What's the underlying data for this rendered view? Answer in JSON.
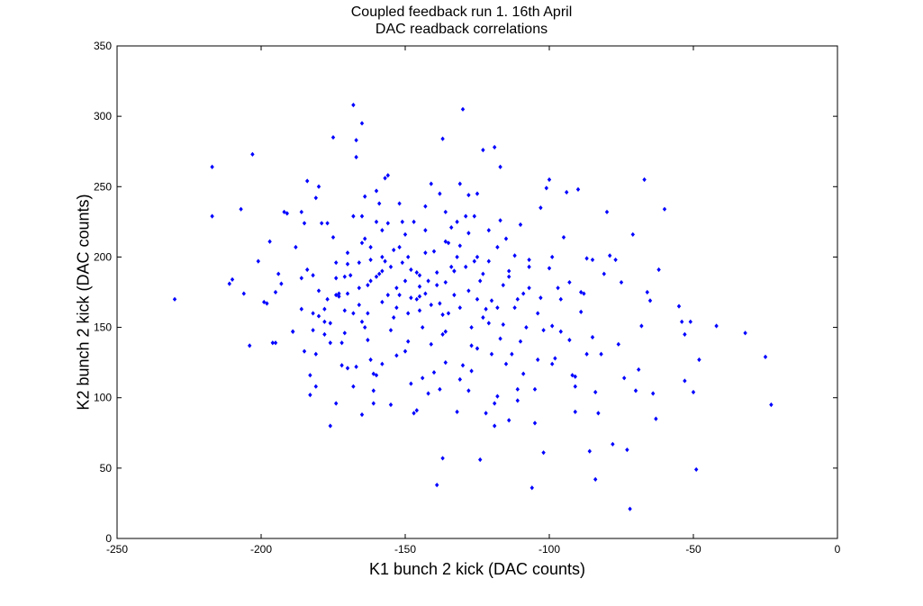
{
  "chart_data": {
    "type": "scatter",
    "title": "Coupled feedback run 1. 16th April",
    "subtitle": "DAC readback correlations",
    "xlabel": "K1 bunch 2 kick (DAC counts)",
    "ylabel": "K2 bunch 2 kick (DAC counts)",
    "xlim": [
      -250,
      0
    ],
    "ylim": [
      0,
      350
    ],
    "xticks": [
      -250,
      -200,
      -150,
      -100,
      -50,
      0
    ],
    "yticks": [
      0,
      50,
      100,
      150,
      200,
      250,
      300,
      350
    ],
    "xtick_labels": [
      "-250",
      "-200",
      "-150",
      "-100",
      "-50",
      "0"
    ],
    "ytick_labels": [
      "0",
      "50",
      "100",
      "150",
      "200",
      "250",
      "300",
      "350"
    ],
    "grid": false,
    "marker_color": "#0000ff",
    "series": [
      {
        "points": [
          [
            -230,
            170
          ],
          [
            -217,
            264
          ],
          [
            -217,
            229
          ],
          [
            -211,
            181
          ],
          [
            -210,
            184
          ],
          [
            -207,
            234
          ],
          [
            -206,
            174
          ],
          [
            -204,
            137
          ],
          [
            -203,
            273
          ],
          [
            -201,
            197
          ],
          [
            -199,
            168
          ],
          [
            -198,
            167
          ],
          [
            -197,
            211
          ],
          [
            -196,
            139
          ],
          [
            -195,
            175
          ],
          [
            -194,
            188
          ],
          [
            -193,
            181
          ],
          [
            -192,
            232
          ],
          [
            -191,
            231
          ],
          [
            -189,
            147
          ],
          [
            -188,
            207
          ],
          [
            -186,
            185
          ],
          [
            -186,
            163
          ],
          [
            -186,
            232
          ],
          [
            -185,
            224
          ],
          [
            -185,
            133
          ],
          [
            -184,
            254
          ],
          [
            -184,
            191
          ],
          [
            -183,
            116
          ],
          [
            -183,
            102
          ],
          [
            -182,
            187
          ],
          [
            -182,
            160
          ],
          [
            -181,
            108
          ],
          [
            -181,
            131
          ],
          [
            -181,
            242
          ],
          [
            -180,
            250
          ],
          [
            -180,
            158
          ],
          [
            -179,
            224
          ],
          [
            -178,
            154
          ],
          [
            -178,
            145
          ],
          [
            -177,
            224
          ],
          [
            -177,
            170
          ],
          [
            -176,
            139
          ],
          [
            -176,
            153
          ],
          [
            -175,
            285
          ],
          [
            -175,
            214
          ],
          [
            -174,
            196
          ],
          [
            -174,
            173
          ],
          [
            -173,
            174
          ],
          [
            -173,
            172
          ],
          [
            -172,
            139
          ],
          [
            -171,
            162
          ],
          [
            -171,
            146
          ],
          [
            -170,
            203
          ],
          [
            -170,
            195
          ],
          [
            -169,
            187
          ],
          [
            -168,
            308
          ],
          [
            -168,
            229
          ],
          [
            -167,
            283
          ],
          [
            -167,
            271
          ],
          [
            -166,
            196
          ],
          [
            -166,
            178
          ],
          [
            -166,
            166
          ],
          [
            -165,
            295
          ],
          [
            -165,
            229
          ],
          [
            -165,
            154
          ],
          [
            -164,
            243
          ],
          [
            -164,
            213
          ],
          [
            -163,
            180
          ],
          [
            -163,
            141
          ],
          [
            -162,
            207
          ],
          [
            -162,
            198
          ],
          [
            -162,
            183
          ],
          [
            -161,
            96
          ],
          [
            -161,
            105
          ],
          [
            -161,
            117
          ],
          [
            -160,
            225
          ],
          [
            -160,
            247
          ],
          [
            -159,
            188
          ],
          [
            -158,
            219
          ],
          [
            -158,
            200
          ],
          [
            -158,
            168
          ],
          [
            -157,
            197
          ],
          [
            -157,
            256
          ],
          [
            -156,
            258
          ],
          [
            -156,
            224
          ],
          [
            -156,
            173
          ],
          [
            -155,
            148
          ],
          [
            -155,
            193
          ],
          [
            -154,
            205
          ],
          [
            -153,
            164
          ],
          [
            -153,
            130
          ],
          [
            -152,
            238
          ],
          [
            -151,
            225
          ],
          [
            -151,
            196
          ],
          [
            -150,
            183
          ],
          [
            -149,
            160
          ],
          [
            -149,
            140
          ],
          [
            -149,
            200
          ],
          [
            -148,
            191
          ],
          [
            -147,
            225
          ],
          [
            -146,
            189
          ],
          [
            -146,
            170
          ],
          [
            -145,
            162
          ],
          [
            -145,
            187
          ],
          [
            -144,
            150
          ],
          [
            -143,
            174
          ],
          [
            -143,
            219
          ],
          [
            -142,
            183
          ],
          [
            -141,
            166
          ],
          [
            -141,
            138
          ],
          [
            -140,
            118
          ],
          [
            -140,
            204
          ],
          [
            -139,
            38
          ],
          [
            -139,
            189
          ],
          [
            -138,
            245
          ],
          [
            -138,
            167
          ],
          [
            -137,
            284
          ],
          [
            -137,
            57
          ],
          [
            -136,
            232
          ],
          [
            -136,
            182
          ],
          [
            -136,
            147
          ],
          [
            -135,
            210
          ],
          [
            -135,
            160
          ],
          [
            -134,
            193
          ],
          [
            -133,
            190
          ],
          [
            -133,
            173
          ],
          [
            -132,
            225
          ],
          [
            -131,
            208
          ],
          [
            -131,
            164
          ],
          [
            -130,
            305
          ],
          [
            -129,
            229
          ],
          [
            -129,
            193
          ],
          [
            -128,
            176
          ],
          [
            -128,
            217
          ],
          [
            -127,
            137
          ],
          [
            -127,
            150
          ],
          [
            -126,
            197
          ],
          [
            -125,
            170
          ],
          [
            -125,
            245
          ],
          [
            -124,
            56
          ],
          [
            -124,
            183
          ],
          [
            -123,
            188
          ],
          [
            -123,
            276
          ],
          [
            -122,
            163
          ],
          [
            -121,
            219
          ],
          [
            -121,
            197
          ],
          [
            -120,
            169
          ],
          [
            -119,
            278
          ],
          [
            -119,
            96
          ],
          [
            -119,
            80
          ],
          [
            -118,
            207
          ],
          [
            -118,
            164
          ],
          [
            -117,
            264
          ],
          [
            -117,
            226
          ],
          [
            -116,
            180
          ],
          [
            -116,
            152
          ],
          [
            -115,
            213
          ],
          [
            -114,
            190
          ],
          [
            -114,
            84
          ],
          [
            -113,
            131
          ],
          [
            -112,
            201
          ],
          [
            -111,
            170
          ],
          [
            -111,
            106
          ],
          [
            -110,
            223
          ],
          [
            -109,
            174
          ],
          [
            -108,
            150
          ],
          [
            -107,
            198
          ],
          [
            -107,
            193
          ],
          [
            -106,
            36
          ],
          [
            -105,
            82
          ],
          [
            -105,
            106
          ],
          [
            -104,
            160
          ],
          [
            -103,
            235
          ],
          [
            -103,
            171
          ],
          [
            -102,
            61
          ],
          [
            -101,
            249
          ],
          [
            -100,
            255
          ],
          [
            -100,
            192
          ],
          [
            -99,
            200
          ],
          [
            -99,
            151
          ],
          [
            -98,
            128
          ],
          [
            -97,
            178
          ],
          [
            -96,
            170
          ],
          [
            -95,
            214
          ],
          [
            -94,
            246
          ],
          [
            -93,
            182
          ],
          [
            -93,
            141
          ],
          [
            -92,
            116
          ],
          [
            -91,
            108
          ],
          [
            -91,
            115
          ],
          [
            -91,
            90
          ],
          [
            -90,
            248
          ],
          [
            -89,
            175
          ],
          [
            -88,
            174
          ],
          [
            -87,
            131
          ],
          [
            -87,
            199
          ],
          [
            -86,
            62
          ],
          [
            -85,
            198
          ],
          [
            -84,
            104
          ],
          [
            -84,
            42
          ],
          [
            -83,
            89
          ],
          [
            -82,
            131
          ],
          [
            -81,
            188
          ],
          [
            -80,
            232
          ],
          [
            -79,
            201
          ],
          [
            -78,
            67
          ],
          [
            -77,
            198
          ],
          [
            -76,
            138
          ],
          [
            -75,
            182
          ],
          [
            -74,
            114
          ],
          [
            -73,
            63
          ],
          [
            -72,
            21
          ],
          [
            -71,
            216
          ],
          [
            -70,
            105
          ],
          [
            -69,
            120
          ],
          [
            -68,
            151
          ],
          [
            -67,
            255
          ],
          [
            -66,
            175
          ],
          [
            -65,
            169
          ],
          [
            -64,
            103
          ],
          [
            -63,
            85
          ],
          [
            -62,
            191
          ],
          [
            -60,
            234
          ],
          [
            -55,
            165
          ],
          [
            -54,
            154
          ],
          [
            -53,
            145
          ],
          [
            -53,
            112
          ],
          [
            -51,
            154
          ],
          [
            -50,
            104
          ],
          [
            -49,
            49
          ],
          [
            -48,
            127
          ],
          [
            -42,
            151
          ],
          [
            -32,
            146
          ],
          [
            -25,
            129
          ],
          [
            -23,
            95
          ],
          [
            -126,
            229
          ],
          [
            -121,
            153
          ],
          [
            -145,
            179
          ],
          [
            -132,
            200
          ],
          [
            -110,
            140
          ],
          [
            -137,
            145
          ],
          [
            -158,
            124
          ],
          [
            -144,
            114
          ],
          [
            -115,
            124
          ],
          [
            -127,
            119
          ],
          [
            -148,
            110
          ],
          [
            -162,
            127
          ],
          [
            -170,
            121
          ],
          [
            -150,
            133
          ],
          [
            -164,
            150
          ],
          [
            -131,
            113
          ],
          [
            -117,
            142
          ],
          [
            -109,
            117
          ],
          [
            -104,
            127
          ],
          [
            -159,
            238
          ],
          [
            -152,
            207
          ],
          [
            -143,
            236
          ],
          [
            -134,
            221
          ],
          [
            -143,
            203
          ],
          [
            -128,
            244
          ],
          [
            -136,
            211
          ],
          [
            -165,
            210
          ],
          [
            -150,
            216
          ],
          [
            -131,
            252
          ],
          [
            -141,
            252
          ],
          [
            -160,
            186
          ],
          [
            -152,
            173
          ],
          [
            -171,
            186
          ],
          [
            -178,
            163
          ],
          [
            -168,
            160
          ],
          [
            -148,
            171
          ],
          [
            -154,
            157
          ],
          [
            -137,
            159
          ],
          [
            -123,
            157
          ],
          [
            -114,
            186
          ],
          [
            -107,
            178
          ],
          [
            -125,
            135
          ],
          [
            -136,
            125
          ],
          [
            -128,
            105
          ],
          [
            -142,
            103
          ],
          [
            -132,
            90
          ],
          [
            -122,
            89
          ],
          [
            -147,
            89
          ],
          [
            -155,
            95
          ],
          [
            -165,
            88
          ],
          [
            -118,
            101
          ],
          [
            -111,
            98
          ],
          [
            -99,
            124
          ],
          [
            -96,
            147
          ],
          [
            -85,
            143
          ],
          [
            -89,
            161
          ],
          [
            -102,
            148
          ],
          [
            -112,
            164
          ],
          [
            -120,
            131
          ],
          [
            -130,
            123
          ],
          [
            -138,
            106
          ],
          [
            -146,
            91
          ],
          [
            -160,
            116
          ],
          [
            -167,
            122
          ],
          [
            -174,
            96
          ],
          [
            -182,
            148
          ],
          [
            -189,
            147
          ],
          [
            -195,
            139
          ],
          [
            -176,
            80
          ],
          [
            -172,
            123
          ],
          [
            -168,
            108
          ],
          [
            -125,
            200
          ],
          [
            -133,
            190
          ],
          [
            -139,
            180
          ],
          [
            -145,
            172
          ],
          [
            -153,
            178
          ],
          [
            -158,
            190
          ],
          [
            -163,
            160
          ],
          [
            -170,
            174
          ],
          [
            -174,
            185
          ],
          [
            -180,
            176
          ]
        ]
      }
    ]
  }
}
